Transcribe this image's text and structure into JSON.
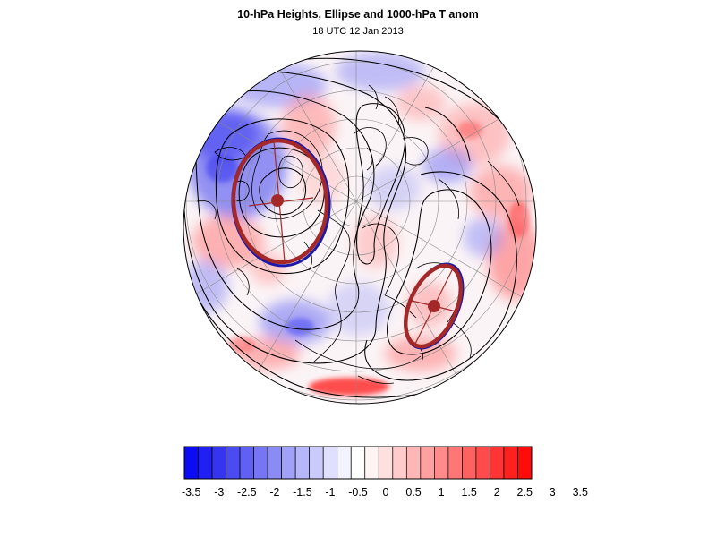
{
  "title": "10-hPa Heights, Ellipse and 1000-hPa T anom",
  "subtitle": "18 UTC 12 Jan 2013",
  "colorbar": {
    "labels": [
      "-3.5",
      "-3",
      "-2.5",
      "-2",
      "-1.5",
      "-1",
      "-0.5",
      "0",
      "0.5",
      "1",
      "1.5",
      "2",
      "2.5",
      "3",
      "3.5"
    ],
    "colors": [
      "#0b0bf5",
      "#2020f2",
      "#3535f0",
      "#4b4bf2",
      "#6060f4",
      "#7676f5",
      "#8b8bf6",
      "#a1a1f8",
      "#b6b6fa",
      "#cbcbfb",
      "#e0e0fd",
      "#f3f3ff",
      "#ffffff",
      "#fff3f3",
      "#ffe0e0",
      "#ffcbcb",
      "#ffb6b6",
      "#ffa1a1",
      "#ff8b8b",
      "#ff7676",
      "#ff6060",
      "#ff4b4b",
      "#ff3535",
      "#ff2020",
      "#ff0b0b"
    ]
  },
  "colors": {
    "ellipse": "#a52828",
    "ellipse_outline_blue": "#1a1aa8",
    "contour": "#000000",
    "coastline": "#000000",
    "grid": "#8a8a8a"
  }
}
